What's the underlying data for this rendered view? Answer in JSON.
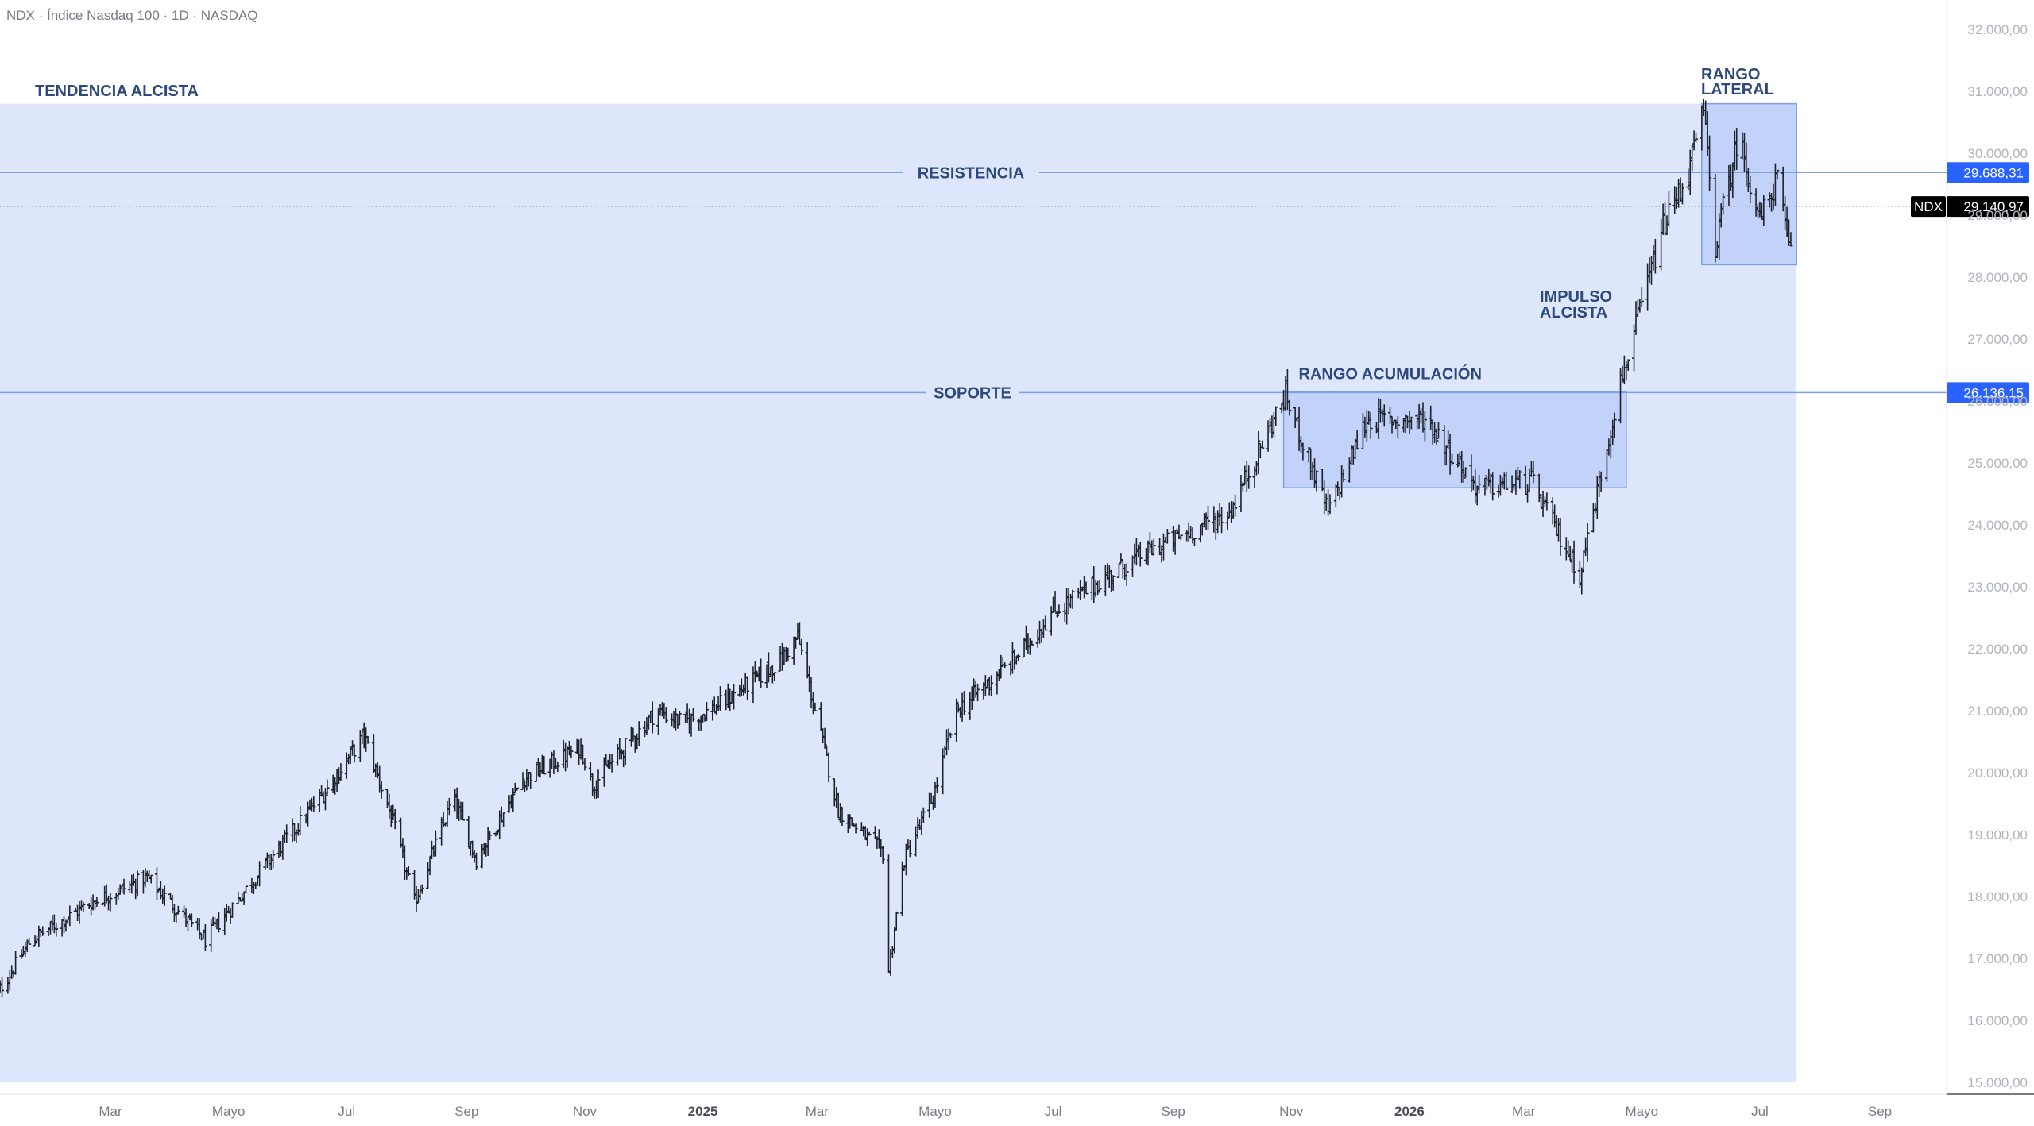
{
  "header": {
    "symbol_title": "NDX · Índice Nasdaq 100 · 1D · NASDAQ"
  },
  "chart_data": {
    "type": "ohlc",
    "symbol": "NDX",
    "last_price_label": "29.140,97",
    "ylim": [
      15000,
      32000
    ],
    "y_ticks": [
      {
        "value": 32000,
        "label": "32.000,00"
      },
      {
        "value": 31000,
        "label": "31.000,00"
      },
      {
        "value": 30000,
        "label": "30.000,00"
      },
      {
        "value": 29000,
        "label": "29.000,00"
      },
      {
        "value": 28000,
        "label": "28.000,00"
      },
      {
        "value": 27000,
        "label": "27.000,00"
      },
      {
        "value": 26000,
        "label": "26.000,00"
      },
      {
        "value": 25000,
        "label": "25.000,00"
      },
      {
        "value": 24000,
        "label": "24.000,00"
      },
      {
        "value": 23000,
        "label": "23.000,00"
      },
      {
        "value": 22000,
        "label": "22.000,00"
      },
      {
        "value": 21000,
        "label": "21.000,00"
      },
      {
        "value": 20000,
        "label": "20.000,00"
      },
      {
        "value": 19000,
        "label": "19.000,00"
      },
      {
        "value": 18000,
        "label": "18.000,00"
      },
      {
        "value": 17000,
        "label": "17.000,00"
      },
      {
        "value": 16000,
        "label": "16.000,00"
      },
      {
        "value": 15000,
        "label": "15.000,00"
      }
    ],
    "x_ticks": [
      {
        "date": "2024-03-01",
        "label": "Mar",
        "bold": false
      },
      {
        "date": "2024-05-01",
        "label": "Mayo",
        "bold": false
      },
      {
        "date": "2024-07-01",
        "label": "Jul",
        "bold": false
      },
      {
        "date": "2024-09-01",
        "label": "Sep",
        "bold": false
      },
      {
        "date": "2024-11-01",
        "label": "Nov",
        "bold": false
      },
      {
        "date": "2025-01-01",
        "label": "2025",
        "bold": true
      },
      {
        "date": "2025-03-01",
        "label": "Mar",
        "bold": false
      },
      {
        "date": "2025-05-01",
        "label": "Mayo",
        "bold": false
      },
      {
        "date": "2025-07-01",
        "label": "Jul",
        "bold": false
      },
      {
        "date": "2025-09-01",
        "label": "Sep",
        "bold": false
      },
      {
        "date": "2025-11-01",
        "label": "Nov",
        "bold": false
      },
      {
        "date": "2026-01-01",
        "label": "2026",
        "bold": true
      },
      {
        "date": "2026-03-01",
        "label": "Mar",
        "bold": false
      },
      {
        "date": "2026-05-01",
        "label": "Mayo",
        "bold": false
      },
      {
        "date": "2026-07-01",
        "label": "Jul",
        "bold": false
      },
      {
        "date": "2026-09-01",
        "label": "Sep",
        "bold": false
      }
    ],
    "price_path": [
      [
        "2024-01-01",
        16350
      ],
      [
        "2024-01-20",
        17300
      ],
      [
        "2024-02-20",
        17900
      ],
      [
        "2024-03-20",
        18300
      ],
      [
        "2024-04-19",
        17300
      ],
      [
        "2024-05-25",
        18700
      ],
      [
        "2024-06-20",
        19700
      ],
      [
        "2024-07-10",
        20600
      ],
      [
        "2024-07-25",
        19200
      ],
      [
        "2024-08-05",
        17900
      ],
      [
        "2024-08-25",
        19600
      ],
      [
        "2024-09-06",
        18600
      ],
      [
        "2024-09-30",
        19900
      ],
      [
        "2024-10-30",
        20400
      ],
      [
        "2024-11-05",
        19800
      ],
      [
        "2024-12-08",
        21000
      ],
      [
        "2024-12-22",
        20800
      ],
      [
        "2025-01-10",
        21100
      ],
      [
        "2025-02-10",
        21800
      ],
      [
        "2025-02-19",
        22200
      ],
      [
        "2025-03-12",
        19400
      ],
      [
        "2025-04-04",
        18700
      ],
      [
        "2025-04-07",
        16800
      ],
      [
        "2025-04-15",
        18600
      ],
      [
        "2025-04-30",
        19600
      ],
      [
        "2025-05-12",
        21000
      ],
      [
        "2025-06-10",
        21800
      ],
      [
        "2025-07-01",
        22600
      ],
      [
        "2025-08-15",
        23500
      ],
      [
        "2025-09-30",
        24200
      ],
      [
        "2025-10-29",
        26100
      ],
      [
        "2025-11-20",
        24200
      ],
      [
        "2025-12-10",
        25700
      ],
      [
        "2026-01-10",
        25700
      ],
      [
        "2026-02-05",
        24600
      ],
      [
        "2026-03-05",
        24700
      ],
      [
        "2026-03-30",
        23200
      ],
      [
        "2026-04-20",
        26300
      ],
      [
        "2026-05-12",
        28800
      ],
      [
        "2026-05-25",
        29700
      ],
      [
        "2026-06-02",
        30700
      ],
      [
        "2026-06-08",
        28500
      ],
      [
        "2026-06-20",
        30300
      ],
      [
        "2026-07-01",
        28900
      ],
      [
        "2026-07-10",
        29600
      ],
      [
        "2026-07-16",
        28400
      ],
      [
        "2026-07-20",
        29140
      ]
    ],
    "horizontal_lines": [
      {
        "label": "RESISTENCIA",
        "price": 29688.31,
        "tag": "29.688,31"
      },
      {
        "label": "SOPORTE",
        "price": 26136.15,
        "tag": "26.136,15"
      }
    ],
    "zones": [
      {
        "label": "TENDENCIA ALCISTA",
        "x_from": "2024-01-01",
        "x_to": "2026-07-20",
        "y_from": 15000,
        "y_to": 30800
      },
      {
        "label": "RANGO ACUMULACIÓN",
        "x_from": "2025-10-28",
        "x_to": "2026-04-23",
        "y_from": 24600,
        "y_to": 26150
      },
      {
        "label_lines": [
          "RANGO",
          "LATERAL"
        ],
        "x_from": "2026-06-01",
        "x_to": "2026-07-20",
        "y_from": 28200,
        "y_to": 30800
      }
    ],
    "annotations": [
      {
        "label_lines": [
          "IMPULSO",
          "ALCISTA"
        ],
        "date": "2026-04-01",
        "price": 28000
      }
    ],
    "colors": {
      "trend_zone": "#dde6fb",
      "range_zone": "#b8cbf7",
      "level_line": "#7c9fe6",
      "price_tag": "#2962ff",
      "last_price_tag": "#000000",
      "bars": "#1e222d",
      "annotation_text": "#2e4a7d"
    }
  }
}
